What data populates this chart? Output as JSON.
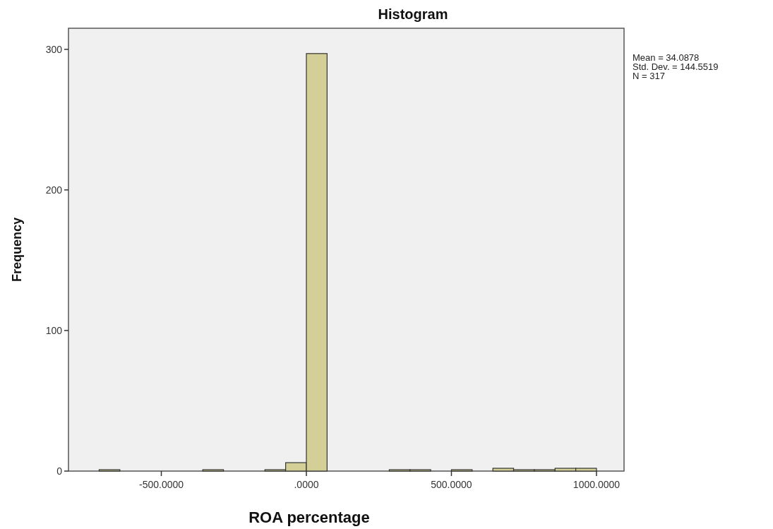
{
  "chart_data": {
    "type": "histogram",
    "title": "Histogram",
    "xlabel": "ROA percentage",
    "ylabel": "Frequency",
    "bins": [
      -714.29,
      -642.86,
      -571.43,
      -500,
      -428.57,
      -357.14,
      -285.71,
      -214.29,
      -142.86,
      -71.43,
      0,
      71.43,
      142.86,
      214.29,
      285.71,
      357.14,
      428.57,
      500,
      571.43,
      642.86,
      714.29,
      785.71,
      857.14,
      928.57,
      1000
    ],
    "values": [
      1,
      0,
      0,
      0,
      0,
      1,
      0,
      0,
      1,
      6,
      297,
      0,
      0,
      0,
      1,
      1,
      0,
      1,
      0,
      2,
      1,
      1,
      2,
      2
    ],
    "color": "#d3cf96",
    "xlim": [
      -820,
      1095
    ],
    "xticks": [
      {
        "value": -500,
        "label": "-500.0000"
      },
      {
        "value": 0,
        "label": ".0000"
      },
      {
        "value": 500,
        "label": "500.0000"
      },
      {
        "value": 1000,
        "label": "1000.0000"
      }
    ],
    "ylim": [
      0,
      315
    ],
    "yticks": [
      0,
      100,
      200,
      300
    ],
    "annotations": [
      "Mean = 34.0878",
      "Std. Dev. = 144.5519",
      "N = 317"
    ]
  }
}
